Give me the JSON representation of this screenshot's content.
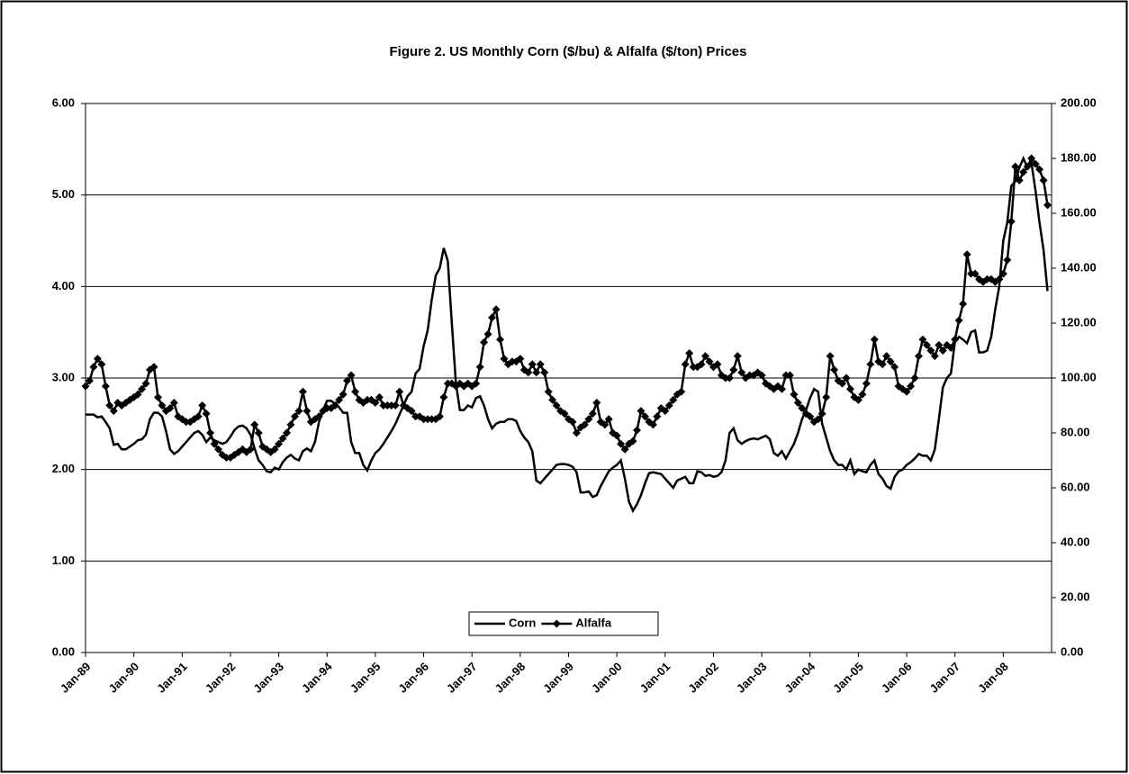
{
  "chart_data": {
    "type": "line",
    "title": "Figure 2. US Monthly Corn ($/bu) & Alfalfa ($/ton) Prices",
    "categories": [
      "Jan-89",
      null,
      null,
      null,
      null,
      null,
      null,
      null,
      null,
      null,
      null,
      null,
      "Jan-90",
      null,
      null,
      null,
      null,
      null,
      null,
      null,
      null,
      null,
      null,
      null,
      "Jan-91",
      null,
      null,
      null,
      null,
      null,
      null,
      null,
      null,
      null,
      null,
      null,
      "Jan-92",
      null,
      null,
      null,
      null,
      null,
      null,
      null,
      null,
      null,
      null,
      null,
      "Jan-93",
      null,
      null,
      null,
      null,
      null,
      null,
      null,
      null,
      null,
      null,
      null,
      "Jan-94",
      null,
      null,
      null,
      null,
      null,
      null,
      null,
      null,
      null,
      null,
      null,
      "Jan-95",
      null,
      null,
      null,
      null,
      null,
      null,
      null,
      null,
      null,
      null,
      null,
      "Jan-96",
      null,
      null,
      null,
      null,
      null,
      null,
      null,
      null,
      null,
      null,
      null,
      "Jan-97",
      null,
      null,
      null,
      null,
      null,
      null,
      null,
      null,
      null,
      null,
      null,
      "Jan-98",
      null,
      null,
      null,
      null,
      null,
      null,
      null,
      null,
      null,
      null,
      null,
      "Jan-99",
      null,
      null,
      null,
      null,
      null,
      null,
      null,
      null,
      null,
      null,
      null,
      "Jan-00",
      null,
      null,
      null,
      null,
      null,
      null,
      null,
      null,
      null,
      null,
      null,
      "Jan-01",
      null,
      null,
      null,
      null,
      null,
      null,
      null,
      null,
      null,
      null,
      null,
      "Jan-02",
      null,
      null,
      null,
      null,
      null,
      null,
      null,
      null,
      null,
      null,
      null,
      "Jan-03",
      null,
      null,
      null,
      null,
      null,
      null,
      null,
      null,
      null,
      null,
      null,
      "Jan-04",
      null,
      null,
      null,
      null,
      null,
      null,
      null,
      null,
      null,
      null,
      null,
      "Jan-05",
      null,
      null,
      null,
      null,
      null,
      null,
      null,
      null,
      null,
      null,
      null,
      "Jan-06",
      null,
      null,
      null,
      null,
      null,
      null,
      null,
      null,
      null,
      null,
      null,
      "Jan-07",
      null,
      null,
      null,
      null,
      null,
      null,
      null,
      null,
      null,
      null,
      null,
      "Jan-08",
      null,
      null,
      null,
      null,
      null,
      null,
      null,
      null,
      null,
      null,
      null
    ],
    "series": [
      {
        "name": "Corn",
        "color": "#000000",
        "marker": "none",
        "values": [
          2.6,
          2.6,
          2.6,
          2.57,
          2.58,
          2.52,
          2.45,
          2.27,
          2.28,
          2.22,
          2.22,
          2.25,
          2.28,
          2.32,
          2.33,
          2.38,
          2.55,
          2.62,
          2.62,
          2.58,
          2.42,
          2.22,
          2.17,
          2.2,
          2.25,
          2.3,
          2.35,
          2.4,
          2.42,
          2.38,
          2.3,
          2.35,
          2.32,
          2.3,
          2.28,
          2.3,
          2.36,
          2.43,
          2.47,
          2.48,
          2.45,
          2.38,
          2.23,
          2.1,
          2.05,
          1.98,
          1.97,
          2.02,
          2.0,
          2.08,
          2.13,
          2.16,
          2.12,
          2.1,
          2.2,
          2.23,
          2.2,
          2.3,
          2.52,
          2.65,
          2.75,
          2.75,
          2.72,
          2.68,
          2.62,
          2.62,
          2.3,
          2.18,
          2.18,
          2.05,
          1.99,
          2.1,
          2.18,
          2.22,
          2.28,
          2.35,
          2.42,
          2.5,
          2.6,
          2.7,
          2.8,
          2.85,
          3.05,
          3.1,
          3.35,
          3.52,
          3.85,
          4.12,
          4.2,
          4.42,
          4.28,
          3.6,
          2.95,
          2.65,
          2.65,
          2.7,
          2.68,
          2.78,
          2.8,
          2.7,
          2.55,
          2.45,
          2.5,
          2.52,
          2.52,
          2.55,
          2.55,
          2.53,
          2.42,
          2.35,
          2.3,
          2.2,
          1.88,
          1.85,
          1.9,
          1.95,
          2.0,
          2.05,
          2.06,
          2.06,
          2.05,
          2.03,
          1.97,
          1.75,
          1.75,
          1.76,
          1.7,
          1.72,
          1.82,
          1.9,
          1.98,
          2.02,
          2.05,
          2.1,
          1.9,
          1.65,
          1.55,
          1.62,
          1.72,
          1.85,
          1.96,
          1.97,
          1.96,
          1.95,
          1.9,
          1.85,
          1.8,
          1.88,
          1.9,
          1.92,
          1.85,
          1.85,
          1.98,
          1.97,
          1.93,
          1.94,
          1.92,
          1.93,
          1.97,
          2.1,
          2.4,
          2.45,
          2.32,
          2.28,
          2.31,
          2.33,
          2.34,
          2.33,
          2.35,
          2.37,
          2.33,
          2.18,
          2.15,
          2.2,
          2.12,
          2.2,
          2.28,
          2.4,
          2.55,
          2.65,
          2.78,
          2.88,
          2.85,
          2.5,
          2.35,
          2.2,
          2.1,
          2.05,
          2.05,
          2.0,
          2.1,
          1.95,
          2.0,
          1.98,
          1.97,
          2.05,
          2.1,
          1.95,
          1.9,
          1.82,
          1.79,
          1.92,
          1.98,
          2.0,
          2.05,
          2.08,
          2.12,
          2.17,
          2.15,
          2.15,
          2.1,
          2.22,
          2.55,
          2.9,
          3.0,
          3.05,
          3.4,
          3.45,
          3.42,
          3.38,
          3.5,
          3.52,
          3.28,
          3.28,
          3.3,
          3.45,
          3.75,
          4.0,
          4.5,
          4.7,
          5.1,
          5.15,
          5.3,
          5.4,
          5.3,
          5.35,
          5.05,
          4.7,
          4.4,
          3.95
        ]
      },
      {
        "name": "Alfalfa",
        "color": "#000000",
        "marker": "diamond",
        "axis": "y2",
        "values": [
          97,
          99,
          104,
          107,
          105,
          97,
          90,
          88,
          91,
          90,
          91,
          92,
          93,
          94,
          96,
          98,
          103,
          104,
          93,
          90,
          88,
          89,
          91,
          86,
          85,
          84,
          84,
          85,
          86,
          90,
          87,
          80,
          76,
          74,
          72,
          71,
          71,
          72,
          73,
          74,
          73,
          74,
          83,
          80,
          75,
          74,
          73,
          74,
          76,
          78,
          80,
          83,
          86,
          88,
          95,
          88,
          84,
          85,
          86,
          88,
          89,
          89,
          90,
          92,
          94,
          99,
          101,
          95,
          92,
          91,
          92,
          92,
          91,
          93,
          90,
          90,
          90,
          90,
          95,
          90,
          89,
          88,
          86,
          86,
          85,
          85,
          85,
          85,
          86,
          93,
          98,
          98,
          97,
          98,
          97,
          98,
          97,
          98,
          104,
          113,
          116,
          122,
          125,
          114,
          107,
          105,
          106,
          106,
          107,
          103,
          102,
          105,
          102,
          105,
          102,
          95,
          92,
          90,
          88,
          87,
          85,
          84,
          80,
          82,
          83,
          85,
          87,
          91,
          84,
          83,
          85,
          80,
          79,
          76,
          74,
          76,
          77,
          81,
          88,
          86,
          84,
          83,
          86,
          89,
          88,
          90,
          92,
          94,
          95,
          105,
          109,
          104,
          104,
          105,
          108,
          106,
          104,
          105,
          101,
          100,
          100,
          103,
          108,
          102,
          100,
          101,
          101,
          102,
          101,
          98,
          97,
          96,
          97,
          96,
          101,
          101,
          94,
          91,
          89,
          87,
          86,
          84,
          85,
          87,
          93,
          108,
          103,
          99,
          98,
          100,
          96,
          93,
          92,
          94,
          98,
          105,
          114,
          106,
          105,
          108,
          106,
          104,
          97,
          96,
          95,
          97,
          100,
          108,
          114,
          112,
          110,
          108,
          112,
          110,
          112,
          111,
          114,
          121,
          127,
          145,
          138,
          138,
          136,
          135,
          136,
          136,
          135,
          136,
          138,
          143,
          157,
          177,
          172,
          175,
          177,
          180,
          178,
          176,
          172,
          163
        ]
      }
    ],
    "ylim": [
      0,
      6
    ],
    "yticks": [
      {
        "value": 0,
        "label": "0.00"
      },
      {
        "value": 1,
        "label": "1.00"
      },
      {
        "value": 2,
        "label": "2.00"
      },
      {
        "value": 3,
        "label": "3.00"
      },
      {
        "value": 4,
        "label": "4.00"
      },
      {
        "value": 5,
        "label": "5.00"
      },
      {
        "value": 6,
        "label": "6.00"
      }
    ],
    "y2lim": [
      0,
      200
    ],
    "y2ticks": [
      {
        "value": 0,
        "label": "0.00"
      },
      {
        "value": 20,
        "label": "20.00"
      },
      {
        "value": 40,
        "label": "40.00"
      },
      {
        "value": 60,
        "label": "60.00"
      },
      {
        "value": 80,
        "label": "80.00"
      },
      {
        "value": 100,
        "label": "100.00"
      },
      {
        "value": 120,
        "label": "120.00"
      },
      {
        "value": 140,
        "label": "140.00"
      },
      {
        "value": 160,
        "label": "160.00"
      },
      {
        "value": 180,
        "label": "180.00"
      },
      {
        "value": 200,
        "label": "200.00"
      }
    ],
    "grid": true,
    "legend": "bottom"
  }
}
